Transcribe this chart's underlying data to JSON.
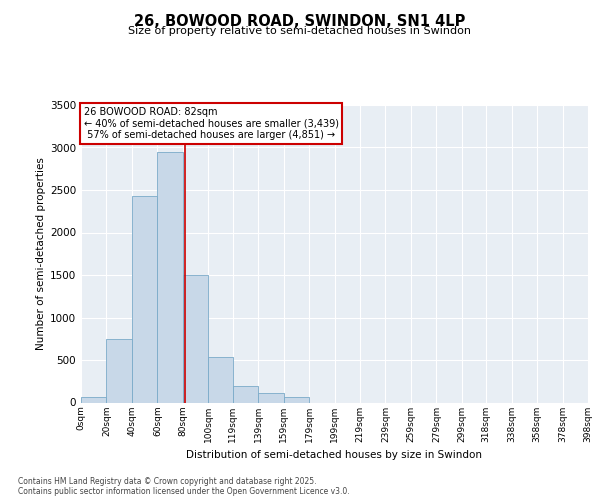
{
  "title_line1": "26, BOWOOD ROAD, SWINDON, SN1 4LP",
  "title_line2": "Size of property relative to semi-detached houses in Swindon",
  "xlabel": "Distribution of semi-detached houses by size in Swindon",
  "ylabel": "Number of semi-detached properties",
  "property_label": "26 BOWOOD ROAD: 82sqm",
  "smaller_pct": 40,
  "smaller_count": 3439,
  "larger_pct": 57,
  "larger_count": 4851,
  "bin_labels": [
    "0sqm",
    "20sqm",
    "40sqm",
    "60sqm",
    "80sqm",
    "100sqm",
    "119sqm",
    "139sqm",
    "159sqm",
    "179sqm",
    "199sqm",
    "219sqm",
    "239sqm",
    "259sqm",
    "279sqm",
    "299sqm",
    "318sqm",
    "338sqm",
    "358sqm",
    "378sqm",
    "398sqm"
  ],
  "bin_edges": [
    0,
    20,
    40,
    60,
    80,
    100,
    119,
    139,
    159,
    179,
    199,
    219,
    239,
    259,
    279,
    299,
    318,
    338,
    358,
    378,
    398
  ],
  "bar_heights": [
    60,
    750,
    2430,
    2950,
    1500,
    530,
    200,
    110,
    60,
    0,
    0,
    0,
    0,
    0,
    0,
    0,
    0,
    0,
    0,
    0
  ],
  "bar_color": "#c8d8e8",
  "bar_edge_color": "#7aaac8",
  "vline_color": "#cc0000",
  "vline_x": 82,
  "ylim": [
    0,
    3500
  ],
  "yticks": [
    0,
    500,
    1000,
    1500,
    2000,
    2500,
    3000,
    3500
  ],
  "plot_bg": "#e8eef4",
  "grid_color": "#ffffff",
  "footnote": "Contains HM Land Registry data © Crown copyright and database right 2025.\nContains public sector information licensed under the Open Government Licence v3.0.",
  "ann_box_fc": "#ffffff",
  "ann_box_ec": "#cc0000"
}
